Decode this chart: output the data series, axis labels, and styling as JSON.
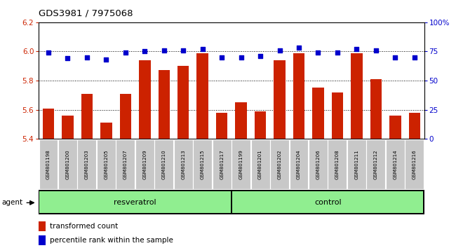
{
  "title": "GDS3981 / 7975068",
  "samples": [
    "GSM801198",
    "GSM801200",
    "GSM801203",
    "GSM801205",
    "GSM801207",
    "GSM801209",
    "GSM801210",
    "GSM801213",
    "GSM801215",
    "GSM801217",
    "GSM801199",
    "GSM801201",
    "GSM801202",
    "GSM801204",
    "GSM801206",
    "GSM801208",
    "GSM801211",
    "GSM801212",
    "GSM801214",
    "GSM801216"
  ],
  "bar_values": [
    5.61,
    5.56,
    5.71,
    5.51,
    5.71,
    5.94,
    5.87,
    5.9,
    5.99,
    5.58,
    5.65,
    5.59,
    5.94,
    5.99,
    5.75,
    5.72,
    5.99,
    5.81,
    5.56,
    5.58
  ],
  "percentile_values": [
    74,
    69,
    70,
    68,
    74,
    75,
    76,
    76,
    77,
    70,
    70,
    71,
    76,
    78,
    74,
    74,
    77,
    76,
    70,
    70
  ],
  "resveratrol_count": 10,
  "control_count": 10,
  "bar_color": "#cc2200",
  "dot_color": "#0000cc",
  "ylim_left": [
    5.4,
    6.2
  ],
  "ylim_right": [
    0,
    100
  ],
  "yticks_left": [
    5.4,
    5.6,
    5.8,
    6.0,
    6.2
  ],
  "yticks_right": [
    0,
    25,
    50,
    75,
    100
  ],
  "ytick_labels_right": [
    "0",
    "25",
    "50",
    "75",
    "100%"
  ],
  "group_labels": [
    "resveratrol",
    "control"
  ],
  "legend_items": [
    "transformed count",
    "percentile rank within the sample"
  ],
  "agent_label": "agent",
  "background_color": "#ffffff",
  "xticklabel_bg": "#c8c8c8",
  "group_bg": "#90ee90",
  "group_border": "#000000"
}
